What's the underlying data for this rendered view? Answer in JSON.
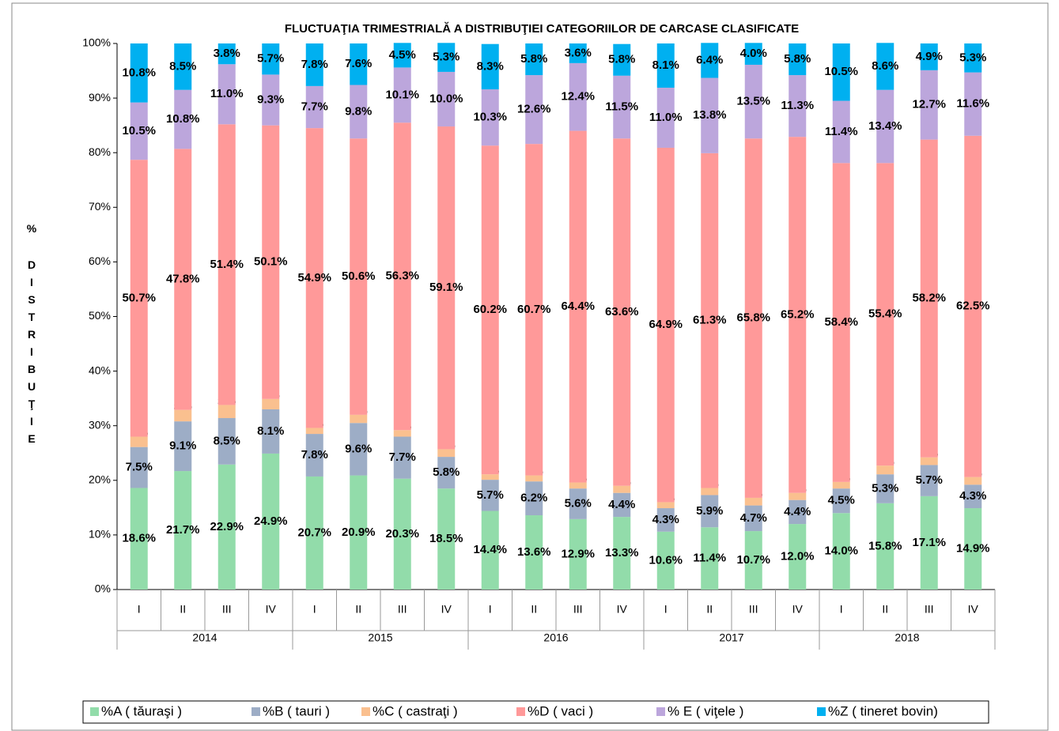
{
  "chart_data": {
    "type": "stacked_bar",
    "title": "FLUCTUAŢIA TRIMESTRIALĂ  A DISTRIBUŢIEI  CATEGORIILOR DE CARCASE CLASIFICATE",
    "y_label": "% DISTRIBUŢIE",
    "categories": [
      "I",
      "II",
      "III",
      "IV",
      "I",
      "II",
      "III",
      "IV",
      "I",
      "II",
      "III",
      "IV",
      "I",
      "II",
      "III",
      "IV",
      "I",
      "II",
      "III",
      "IV"
    ],
    "groups": [
      "2014",
      "2015",
      "2016",
      "2017",
      "2018"
    ],
    "ylim": [
      0,
      100
    ],
    "yticks": [
      {
        "value": 0,
        "label": "0%"
      },
      {
        "value": 10,
        "label": "10%"
      },
      {
        "value": 20,
        "label": "20%"
      },
      {
        "value": 30,
        "label": "30%"
      },
      {
        "value": 40,
        "label": "40%"
      },
      {
        "value": 50,
        "label": "50%"
      },
      {
        "value": 60,
        "label": "60%"
      },
      {
        "value": 70,
        "label": "70%"
      },
      {
        "value": 80,
        "label": "80%"
      },
      {
        "value": 90,
        "label": "90%"
      },
      {
        "value": 100,
        "label": "100%"
      }
    ],
    "grid": false,
    "legend": "bottom",
    "series": [
      {
        "name": "%A ( tăuraşi )",
        "color": "#92dcaa",
        "values": [
          18.6,
          21.7,
          22.9,
          24.9,
          20.7,
          20.9,
          20.3,
          18.5,
          14.4,
          13.6,
          12.9,
          13.3,
          10.6,
          11.4,
          10.7,
          12.0,
          14.0,
          15.8,
          17.1,
          14.9
        ],
        "value_labels": [
          "18.6%",
          "21.7%",
          "22.9%",
          "24.9%",
          "20.7%",
          "20.9%",
          "20.3%",
          "18.5%",
          "14.4%",
          "13.6%",
          "12.9%",
          "13.3%",
          "10.6%",
          "11.4%",
          "10.7%",
          "12.0%",
          "14.0%",
          "15.8%",
          "17.1%",
          "14.9%"
        ]
      },
      {
        "name": "%B ( tauri )",
        "color": "#9dadc6",
        "values": [
          7.5,
          9.1,
          8.5,
          8.1,
          7.8,
          9.6,
          7.7,
          5.8,
          5.7,
          6.2,
          5.6,
          4.4,
          4.3,
          5.9,
          4.7,
          4.4,
          4.5,
          5.3,
          5.7,
          4.3
        ],
        "value_labels": [
          "7.5%",
          "9.1%",
          "8.5%",
          "8.1%",
          "7.8%",
          "9.6%",
          "7.7%",
          "5.8%",
          "5.7%",
          "6.2%",
          "5.6%",
          "4.4%",
          "4.3%",
          "5.9%",
          "4.7%",
          "4.4%",
          "4.5%",
          "5.3%",
          "5.7%",
          "4.3%"
        ]
      },
      {
        "name": "%C ( castraţi )",
        "color": "#fac08f",
        "values": [
          1.9,
          2.1,
          2.4,
          1.9,
          1.1,
          1.5,
          1.2,
          1.4,
          1.0,
          1.1,
          1.1,
          1.3,
          1.1,
          1.3,
          1.4,
          1.3,
          1.2,
          1.6,
          1.4,
          1.4
        ],
        "value_labels": [
          "1.9%",
          "2.1%",
          "2.4%",
          "1.9%",
          "1.1%",
          "1.5%",
          "1.2%",
          "1.4%",
          "1.0%",
          "1.1%",
          "1.1%",
          "1.3%",
          "1.1%",
          "1.3%",
          "1.4%",
          "1.3%",
          "1.2%",
          "1.6%",
          "1.4%",
          "1.4%"
        ]
      },
      {
        "name": "%D ( vaci )",
        "color": "#ff9999",
        "values": [
          50.7,
          47.8,
          51.4,
          50.1,
          54.9,
          50.6,
          56.3,
          59.1,
          60.2,
          60.7,
          64.4,
          63.6,
          64.9,
          61.3,
          65.8,
          65.2,
          58.4,
          55.4,
          58.2,
          62.5
        ],
        "value_labels": [
          "50.7%",
          "47.8%",
          "51.4%",
          "50.1%",
          "54.9%",
          "50.6%",
          "56.3%",
          "59.1%",
          "60.2%",
          "60.7%",
          "64.4%",
          "63.6%",
          "64.9%",
          "61.3%",
          "65.8%",
          "65.2%",
          "58.4%",
          "55.4%",
          "58.2%",
          "62.5%"
        ]
      },
      {
        "name": "% E ( viţele )",
        "color": "#bca6dc",
        "values": [
          10.5,
          10.8,
          11.0,
          9.3,
          7.7,
          9.8,
          10.1,
          10.0,
          10.3,
          12.6,
          12.4,
          11.5,
          11.0,
          13.8,
          13.5,
          11.3,
          11.4,
          13.4,
          12.7,
          11.6
        ],
        "value_labels": [
          "10.5%",
          "10.8%",
          "11.0%",
          "9.3%",
          "7.7%",
          "9.8%",
          "10.1%",
          "10.0%",
          "10.3%",
          "12.6%",
          "12.4%",
          "11.5%",
          "11.0%",
          "13.8%",
          "13.5%",
          "11.3%",
          "11.4%",
          "13.4%",
          "12.7%",
          "11.6%"
        ]
      },
      {
        "name": "%Z ( tineret bovin)",
        "color": "#00b0f0",
        "values": [
          10.8,
          8.5,
          3.8,
          5.7,
          7.8,
          7.6,
          4.5,
          5.3,
          8.3,
          5.8,
          3.6,
          5.8,
          8.1,
          6.4,
          4.0,
          5.8,
          10.5,
          8.6,
          4.9,
          5.3
        ],
        "value_labels": [
          "10.8%",
          "8.5%",
          "3.8%",
          "5.7%",
          "7.8%",
          "7.6%",
          "4.5%",
          "5.3%",
          "8.3%",
          "5.8%",
          "3.6%",
          "5.8%",
          "8.1%",
          "6.4%",
          "4.0%",
          "5.8%",
          "10.5%",
          "8.6%",
          "4.9%",
          "5.3%"
        ]
      }
    ]
  }
}
